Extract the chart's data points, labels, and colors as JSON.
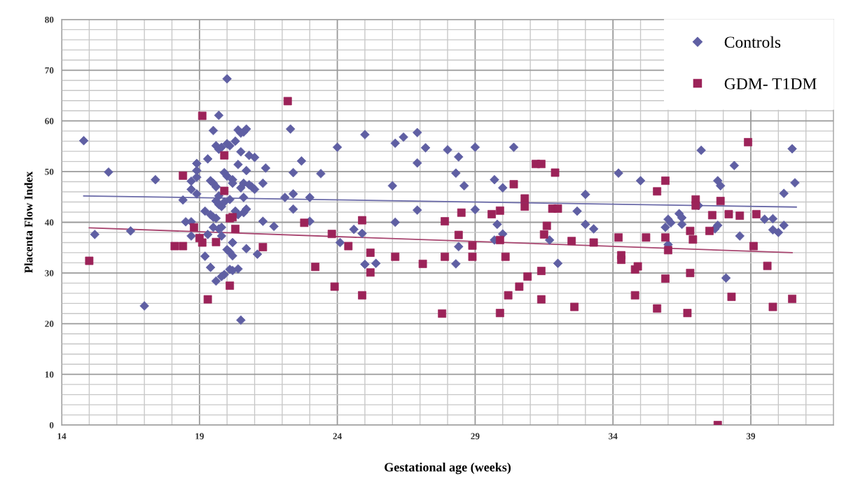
{
  "chart_data": {
    "type": "scatter",
    "xlabel": "Gestational age (weeks)",
    "ylabel": "Placenta Flow Index",
    "xlim": [
      14,
      42
    ],
    "ylim": [
      0,
      80
    ],
    "xticks": [
      14,
      {
        "value": 15,
        "label": null
      },
      {
        "value": 16,
        "label": null
      },
      {
        "value": 17,
        "label": null
      },
      {
        "value": 18,
        "label": null
      },
      19,
      {
        "value": 20,
        "label": null
      },
      {
        "value": 21,
        "label": null
      },
      {
        "value": 22,
        "label": null
      },
      {
        "value": 23,
        "label": null
      },
      24,
      {
        "value": 25,
        "label": null
      },
      {
        "value": 26,
        "label": null
      },
      {
        "value": 27,
        "label": null
      },
      {
        "value": 28,
        "label": null
      },
      29,
      {
        "value": 30,
        "label": null
      },
      {
        "value": 31,
        "label": null
      },
      {
        "value": 32,
        "label": null
      },
      {
        "value": 33,
        "label": null
      },
      34,
      {
        "value": 35,
        "label": null
      },
      {
        "value": 36,
        "label": null
      },
      {
        "value": 37,
        "label": null
      },
      {
        "value": 38,
        "label": null
      },
      39,
      {
        "value": 40,
        "label": null
      },
      {
        "value": 41,
        "label": null
      },
      {
        "value": 42,
        "label": null
      }
    ],
    "yticks": [
      0,
      {
        "value": 2,
        "label": null
      },
      {
        "value": 4,
        "label": null
      },
      {
        "value": 6,
        "label": null
      },
      {
        "value": 8,
        "label": null
      },
      10,
      {
        "value": 12,
        "label": null
      },
      {
        "value": 14,
        "label": null
      },
      {
        "value": 16,
        "label": null
      },
      {
        "value": 18,
        "label": null
      },
      20,
      {
        "value": 22,
        "label": null
      },
      {
        "value": 24,
        "label": null
      },
      {
        "value": 26,
        "label": null
      },
      {
        "value": 28,
        "label": null
      },
      30,
      {
        "value": 32,
        "label": null
      },
      {
        "value": 34,
        "label": null
      },
      {
        "value": 36,
        "label": null
      },
      {
        "value": 38,
        "label": null
      },
      40,
      {
        "value": 42,
        "label": null
      },
      {
        "value": 44,
        "label": null
      },
      {
        "value": 46,
        "label": null
      },
      {
        "value": 48,
        "label": null
      },
      50,
      {
        "value": 52,
        "label": null
      },
      {
        "value": 54,
        "label": null
      },
      {
        "value": 56,
        "label": null
      },
      {
        "value": 58,
        "label": null
      },
      60,
      {
        "value": 62,
        "label": null
      },
      {
        "value": 64,
        "label": null
      },
      {
        "value": 66,
        "label": null
      },
      {
        "value": 68,
        "label": null
      },
      70,
      {
        "value": 72,
        "label": null
      },
      {
        "value": 74,
        "label": null
      },
      {
        "value": 76,
        "label": null
      },
      {
        "value": 78,
        "label": null
      },
      80
    ],
    "grid": true,
    "legend": "top right",
    "series": [
      {
        "name": "Controls",
        "marker": "diamond",
        "color": "#5f5fa3",
        "x": [
          14.8,
          15.7,
          17.4,
          18.4,
          18.7,
          18.7,
          18.9,
          18.9,
          18.9,
          18.9,
          15.2,
          16.5,
          18.5,
          18.7,
          18.7,
          17.0,
          20.0,
          19.7,
          19.5,
          20.4,
          20.6,
          20.7,
          20.5,
          20.3,
          20.0,
          20.1,
          19.6,
          19.7,
          19.8,
          20.5,
          20.8,
          21.0,
          19.3,
          20.4,
          20.7,
          21.4,
          19.9,
          20.0,
          20.2,
          20.2,
          19.4,
          19.5,
          19.6,
          20.6,
          20.5,
          20.8,
          20.9,
          21.0,
          21.3,
          19.7,
          19.6,
          19.7,
          19.8,
          19.9,
          20.1,
          20.6,
          22.1,
          22.4,
          19.2,
          19.4,
          19.5,
          19.6,
          20.3,
          20.4,
          20.6,
          20.7,
          21.3,
          21.7,
          22.4,
          19.5,
          19.7,
          19.8,
          19.3,
          19.8,
          20.2,
          20.0,
          20.1,
          20.2,
          20.7,
          21.1,
          19.2,
          19.4,
          20.1,
          20.2,
          20.4,
          19.9,
          19.8,
          19.6,
          20.5,
          22.3,
          22.4,
          22.7,
          23.4,
          23.0,
          23.0,
          24.0,
          25.0,
          24.6,
          24.9,
          24.1,
          25.0,
          25.4,
          26.1,
          26.4,
          26.0,
          26.1,
          26.9,
          27.2,
          26.9,
          26.9,
          28.0,
          28.4,
          28.3,
          28.6,
          29.0,
          29.0,
          28.4,
          28.3,
          30.4,
          29.7,
          30.0,
          29.8,
          30.0,
          29.7,
          31.7,
          32.0,
          33.0,
          32.7,
          33.0,
          33.3,
          34.2,
          35.0,
          37.2,
          38.4,
          37.8,
          37.9,
          40.5,
          40.6,
          40.2,
          36.4,
          36.5,
          36.5,
          36.0,
          36.1,
          35.9,
          36.0,
          37.8,
          37.7,
          37.1,
          39.5,
          39.8,
          39.8,
          40.0,
          40.2,
          38.6,
          38.1
        ],
        "values": [
          56.1,
          49.9,
          48.4,
          44.4,
          48.1,
          46.5,
          51.6,
          50.2,
          48.9,
          45.6,
          37.6,
          38.3,
          40.1,
          40.1,
          37.3,
          23.5,
          68.3,
          61.1,
          58.1,
          58.2,
          57.8,
          58.4,
          57.6,
          56.0,
          55.5,
          55.1,
          55.1,
          54.4,
          54.8,
          53.9,
          53.2,
          52.8,
          52.5,
          51.4,
          50.2,
          50.7,
          49.8,
          49.1,
          48.4,
          47.7,
          48.2,
          47.7,
          47.0,
          47.7,
          46.8,
          47.4,
          47.0,
          46.5,
          47.7,
          45.2,
          44.2,
          43.5,
          43.1,
          44.0,
          44.5,
          44.9,
          44.9,
          45.6,
          42.2,
          41.5,
          41.0,
          40.8,
          42.2,
          41.5,
          41.9,
          42.6,
          40.2,
          39.2,
          42.6,
          39.0,
          38.7,
          39.0,
          37.6,
          37.3,
          36.0,
          34.6,
          34.1,
          33.4,
          34.8,
          33.7,
          33.3,
          31.1,
          30.7,
          30.5,
          30.8,
          29.7,
          29.3,
          28.4,
          20.7,
          58.4,
          49.8,
          52.1,
          49.6,
          44.9,
          40.2,
          54.8,
          57.3,
          38.6,
          37.8,
          36.0,
          31.7,
          31.9,
          55.6,
          56.8,
          47.2,
          40.0,
          57.7,
          54.7,
          51.7,
          42.4,
          54.3,
          52.9,
          49.7,
          47.2,
          54.8,
          42.5,
          35.2,
          31.8,
          54.8,
          48.4,
          46.8,
          39.6,
          37.7,
          36.5,
          36.5,
          31.9,
          45.5,
          42.2,
          39.6,
          38.7,
          49.7,
          48.2,
          54.2,
          51.2,
          48.2,
          47.2,
          54.5,
          47.8,
          45.7,
          41.7,
          40.9,
          39.6,
          40.6,
          39.9,
          39.0,
          35.6,
          39.4,
          38.7,
          43.3,
          40.6,
          40.7,
          38.5,
          38.0,
          39.4,
          37.3,
          29.0
        ]
      },
      {
        "name": "GDM- T1DM",
        "marker": "square",
        "color": "#9c2359",
        "x": [
          18.4,
          15.0,
          18.1,
          18.4,
          18.8,
          19.0,
          19.1,
          19.1,
          19.9,
          19.9,
          20.1,
          20.2,
          20.3,
          19.6,
          21.3,
          20.1,
          19.3,
          22.2,
          22.8,
          23.8,
          24.4,
          23.2,
          23.9,
          24.9,
          25.2,
          25.2,
          24.9,
          26.1,
          27.1,
          27.9,
          28.5,
          28.4,
          27.9,
          28.9,
          28.9,
          27.8,
          31.2,
          31.4,
          31.9,
          30.4,
          30.8,
          30.8,
          29.9,
          29.6,
          31.8,
          32.0,
          31.6,
          31.5,
          29.9,
          30.1,
          32.5,
          33.3,
          34.2,
          35.2,
          34.3,
          34.3,
          31.4,
          30.9,
          30.6,
          30.2,
          31.4,
          29.9,
          32.6,
          34.8,
          34.9,
          34.8,
          38.9,
          35.9,
          35.6,
          37.0,
          37.0,
          37.9,
          37.6,
          38.2,
          38.6,
          39.2,
          36.8,
          36.9,
          37.5,
          35.9,
          36.0,
          39.1,
          35.9,
          36.8,
          39.6,
          35.6,
          36.7,
          38.3,
          39.8,
          40.5,
          37.8
        ],
        "values": [
          49.2,
          32.4,
          35.3,
          35.3,
          39.0,
          36.9,
          36.0,
          61.0,
          53.2,
          46.2,
          40.8,
          41.0,
          38.7,
          36.1,
          35.1,
          27.5,
          24.8,
          63.9,
          39.9,
          37.7,
          35.3,
          31.2,
          27.3,
          40.4,
          34.0,
          30.1,
          25.6,
          33.2,
          31.8,
          40.2,
          41.9,
          37.5,
          33.2,
          35.4,
          33.2,
          22.0,
          51.5,
          51.5,
          49.8,
          47.5,
          44.7,
          43.1,
          42.3,
          41.6,
          42.7,
          42.7,
          39.3,
          37.6,
          36.5,
          33.2,
          36.3,
          36.0,
          37.0,
          37.0,
          33.5,
          32.6,
          30.4,
          29.3,
          27.3,
          25.6,
          24.8,
          22.1,
          23.3,
          30.7,
          31.3,
          25.6,
          55.8,
          48.2,
          46.1,
          44.5,
          43.3,
          44.2,
          41.4,
          41.6,
          41.3,
          41.6,
          38.3,
          36.6,
          38.3,
          37.0,
          34.5,
          35.3,
          28.9,
          30.0,
          31.4,
          23.0,
          22.1,
          25.3,
          23.3,
          24.9,
          0
        ]
      },
      {
        "type": "line",
        "color": "#6a6aa8",
        "x": [
          14.8,
          40.65
        ],
        "values": [
          45.2,
          43.0
        ]
      },
      {
        "type": "line",
        "color": "#a8456f",
        "x": [
          15.0,
          40.5
        ],
        "values": [
          38.9,
          34.0
        ]
      }
    ]
  }
}
